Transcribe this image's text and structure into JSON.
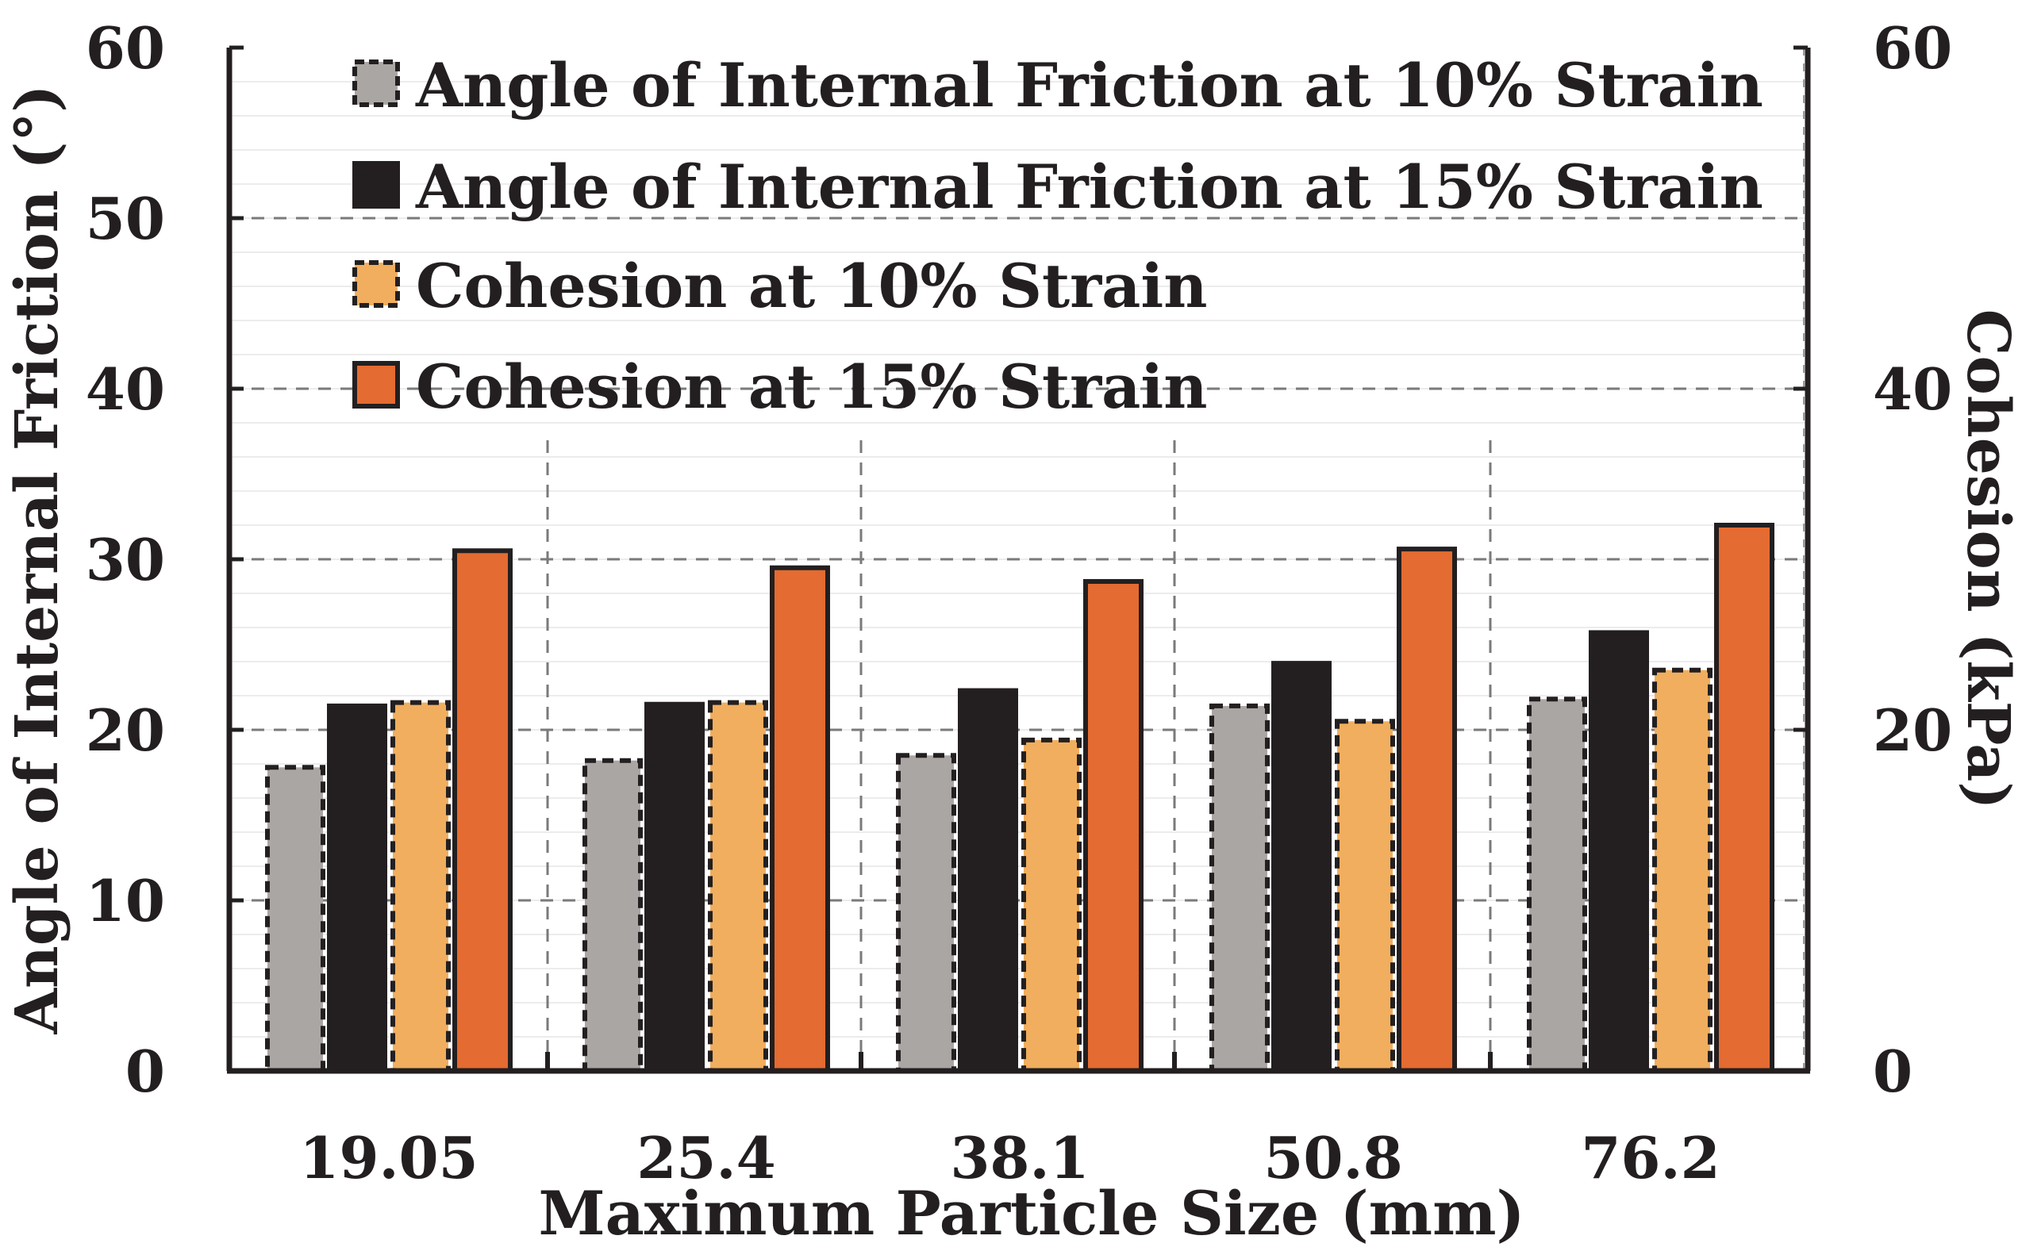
{
  "chart_data": {
    "type": "bar",
    "xlabel": "Maximum Particle Size (mm)",
    "ylabel_left": "Angle of Internal Friction (°)",
    "ylabel_right": "Cohesion (kPa)",
    "categories": [
      "19.05",
      "25.4",
      "38.1",
      "50.8",
      "76.2"
    ],
    "ylim_left": [
      0,
      60
    ],
    "ylim_right": [
      0,
      60
    ],
    "yticks_left": [
      "0",
      "10",
      "20",
      "30",
      "40",
      "50",
      "60"
    ],
    "yticks_right": [
      "0",
      "20",
      "40",
      "60"
    ],
    "grid": true,
    "legend_position": "top-left",
    "series": [
      {
        "name": "Angle of Internal Friction at 10% Strain",
        "axis": "left",
        "color": "#aaa6a4",
        "border": "dashed",
        "values": [
          17.8,
          18.2,
          18.5,
          21.4,
          21.8
        ]
      },
      {
        "name": "Angle of Internal Friction at 15% Strain",
        "axis": "left",
        "color": "#231f20",
        "border": "solid",
        "values": [
          21.4,
          21.5,
          22.3,
          23.9,
          25.7
        ]
      },
      {
        "name": "Cohesion at 10% Strain",
        "axis": "right",
        "color": "#f0ae5e",
        "border": "dashed",
        "values": [
          21.6,
          21.6,
          19.4,
          20.5,
          23.5
        ]
      },
      {
        "name": "Cohesion at 15% Strain",
        "axis": "right",
        "color": "#e46b31",
        "border": "solid",
        "values": [
          30.5,
          29.5,
          28.7,
          30.6,
          32.0
        ]
      }
    ]
  }
}
